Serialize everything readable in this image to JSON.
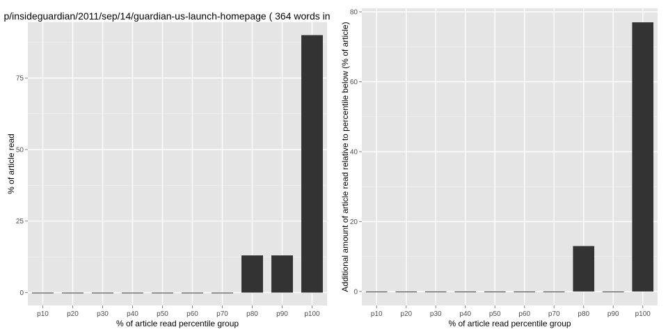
{
  "chart_data": [
    {
      "type": "bar",
      "title": "p/insideguardian/2011/sep/14/guardian-us-launch-homepage ( 364 words in",
      "xlabel": "% of article read percentile group",
      "ylabel": "% of article read",
      "categories": [
        "p10",
        "p20",
        "p30",
        "p40",
        "p50",
        "p60",
        "p70",
        "p80",
        "p90",
        "p100"
      ],
      "values": [
        0,
        0,
        0,
        0,
        0,
        0,
        0,
        13,
        13,
        90
      ],
      "ylim": [
        -4.5,
        94.5
      ],
      "yticks": [
        0,
        25,
        50,
        75
      ],
      "grid": true,
      "background": "#e5e5e5",
      "bar_color": "#333333"
    },
    {
      "type": "bar",
      "title": "",
      "xlabel": "% of article read percentile group",
      "ylabel": "Additional amount of article read relative to percentile below (% of article)",
      "categories": [
        "p10",
        "p20",
        "p30",
        "p40",
        "p50",
        "p60",
        "p70",
        "p80",
        "p90",
        "p100"
      ],
      "values": [
        0,
        0,
        0,
        0,
        0,
        0,
        0,
        13,
        0,
        77
      ],
      "ylim": [
        -4,
        81
      ],
      "yticks": [
        0,
        20,
        40,
        60,
        80
      ],
      "grid": true,
      "background": "#e5e5e5",
      "bar_color": "#333333"
    }
  ]
}
